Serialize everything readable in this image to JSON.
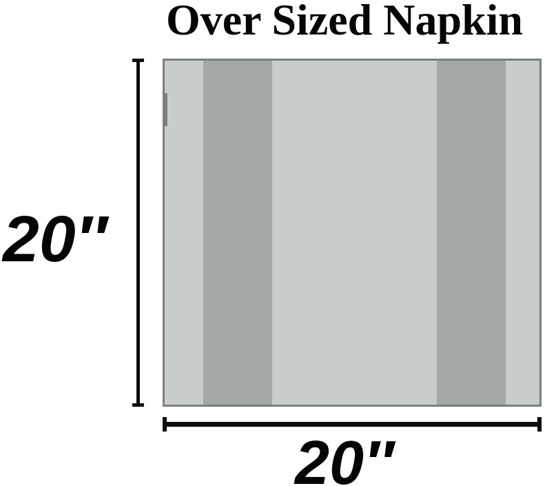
{
  "title": "Over Sized Napkin",
  "dimensions": {
    "height_label": "20″",
    "width_label": "20″"
  },
  "napkin": {
    "base_color": "#c9cccd",
    "stripe_color": "#a5a8a9",
    "border_color": "#7b7e7f",
    "stripes": [
      {
        "left_pct": 10.3,
        "width_pct": 18.4
      },
      {
        "left_pct": 72.6,
        "width_pct": 18.4
      }
    ]
  },
  "colors": {
    "text": "#050505",
    "dimension_line": "#0d0d0d",
    "background": "#ffffff"
  }
}
